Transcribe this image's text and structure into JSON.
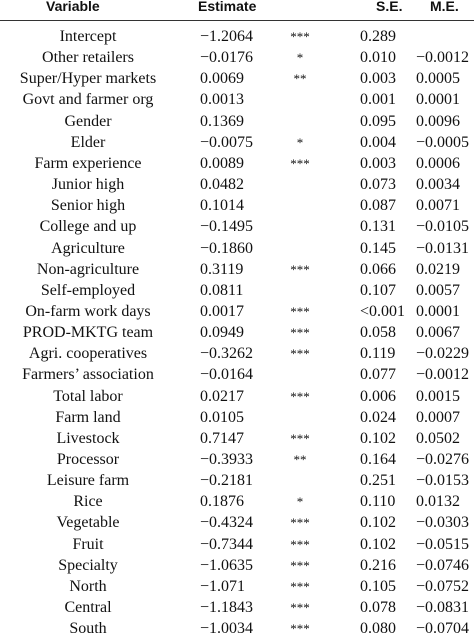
{
  "table": {
    "header": {
      "variable": "Variable",
      "estimate": "Estimate",
      "se": "S.E.",
      "me": "M.E."
    },
    "rows": [
      {
        "variable": "Intercept",
        "estimate": "−1.2064",
        "sig": "***",
        "se": "0.289"
      },
      {
        "variable": "Other retailers",
        "estimate": "−0.0176",
        "sig": "*",
        "se": "0.010",
        "me": "−0.0012"
      },
      {
        "variable": "Super/Hyper markets",
        "estimate": "0.0069",
        "sig": "**",
        "se": "0.003",
        "me": "0.0005"
      },
      {
        "variable": "Govt and farmer org",
        "estimate": "0.0013",
        "se": "0.001",
        "me": "0.0001"
      },
      {
        "variable": "Gender",
        "estimate": "0.1369",
        "se": "0.095",
        "me": "0.0096"
      },
      {
        "variable": "Elder",
        "estimate": "−0.0075",
        "sig": "*",
        "se": "0.004",
        "me": "−0.0005"
      },
      {
        "variable": "Farm experience",
        "estimate": "0.0089",
        "sig": "***",
        "se": "0.003",
        "me": "0.0006"
      },
      {
        "variable": "Junior high",
        "estimate": "0.0482",
        "se": "0.073",
        "me": "0.0034"
      },
      {
        "variable": "Senior high",
        "estimate": "0.1014",
        "se": "0.087",
        "me": "0.0071"
      },
      {
        "variable": "College and up",
        "estimate": "−0.1495",
        "se": "0.131",
        "me": "−0.0105"
      },
      {
        "variable": "Agriculture",
        "estimate": "−0.1860",
        "se": "0.145",
        "me": "−0.0131"
      },
      {
        "variable": "Non-agriculture",
        "estimate": "0.3119",
        "sig": "***",
        "se": "0.066",
        "me": "0.0219"
      },
      {
        "variable": "Self-employed",
        "estimate": "0.0811",
        "se": "0.107",
        "me": "0.0057"
      },
      {
        "variable": "On-farm work days",
        "estimate": "0.0017",
        "sig": "***",
        "se": "<0.001",
        "me": "0.0001"
      },
      {
        "variable": "PROD-MKTG team",
        "estimate": "0.0949",
        "sig": "***",
        "se": "0.058",
        "me": "0.0067"
      },
      {
        "variable": "Agri. cooperatives",
        "estimate": "−0.3262",
        "sig": "***",
        "se": "0.119",
        "me": "−0.0229"
      },
      {
        "variable": "Farmers’ association",
        "estimate": "−0.0164",
        "se": "0.077",
        "me": "−0.0012"
      },
      {
        "variable": "Total labor",
        "estimate": "0.0217",
        "sig": "***",
        "se": "0.006",
        "me": "0.0015"
      },
      {
        "variable": "Farm land",
        "estimate": "0.0105",
        "se": "0.024",
        "me": "0.0007"
      },
      {
        "variable": "Livestock",
        "estimate": "0.7147",
        "sig": "***",
        "se": "0.102",
        "me": "0.0502"
      },
      {
        "variable": "Processor",
        "estimate": "−0.3933",
        "sig": "**",
        "se": "0.164",
        "me": "−0.0276"
      },
      {
        "variable": "Leisure farm",
        "estimate": "−0.2181",
        "se": "0.251",
        "me": "−0.0153"
      },
      {
        "variable": "Rice",
        "estimate": "0.1876",
        "sig": "*",
        "se": "0.110",
        "me": "0.0132"
      },
      {
        "variable": "Vegetable",
        "estimate": "−0.4324",
        "sig": "***",
        "se": "0.102",
        "me": "−0.0303"
      },
      {
        "variable": "Fruit",
        "estimate": "−0.7344",
        "sig": "***",
        "se": "0.102",
        "me": "−0.0515"
      },
      {
        "variable": "Specialty",
        "estimate": "−1.0635",
        "sig": "***",
        "se": "0.216",
        "me": "−0.0746"
      },
      {
        "variable": "North",
        "estimate": "−1.071",
        "sig": "***",
        "se": "0.105",
        "me": "−0.0752"
      },
      {
        "variable": "Central",
        "estimate": "−1.1843",
        "sig": "***",
        "se": "0.078",
        "me": "−0.0831"
      },
      {
        "variable": "South",
        "estimate": "−1.0034",
        "sig": "***",
        "se": "0.080",
        "me": "−0.0704"
      }
    ]
  }
}
